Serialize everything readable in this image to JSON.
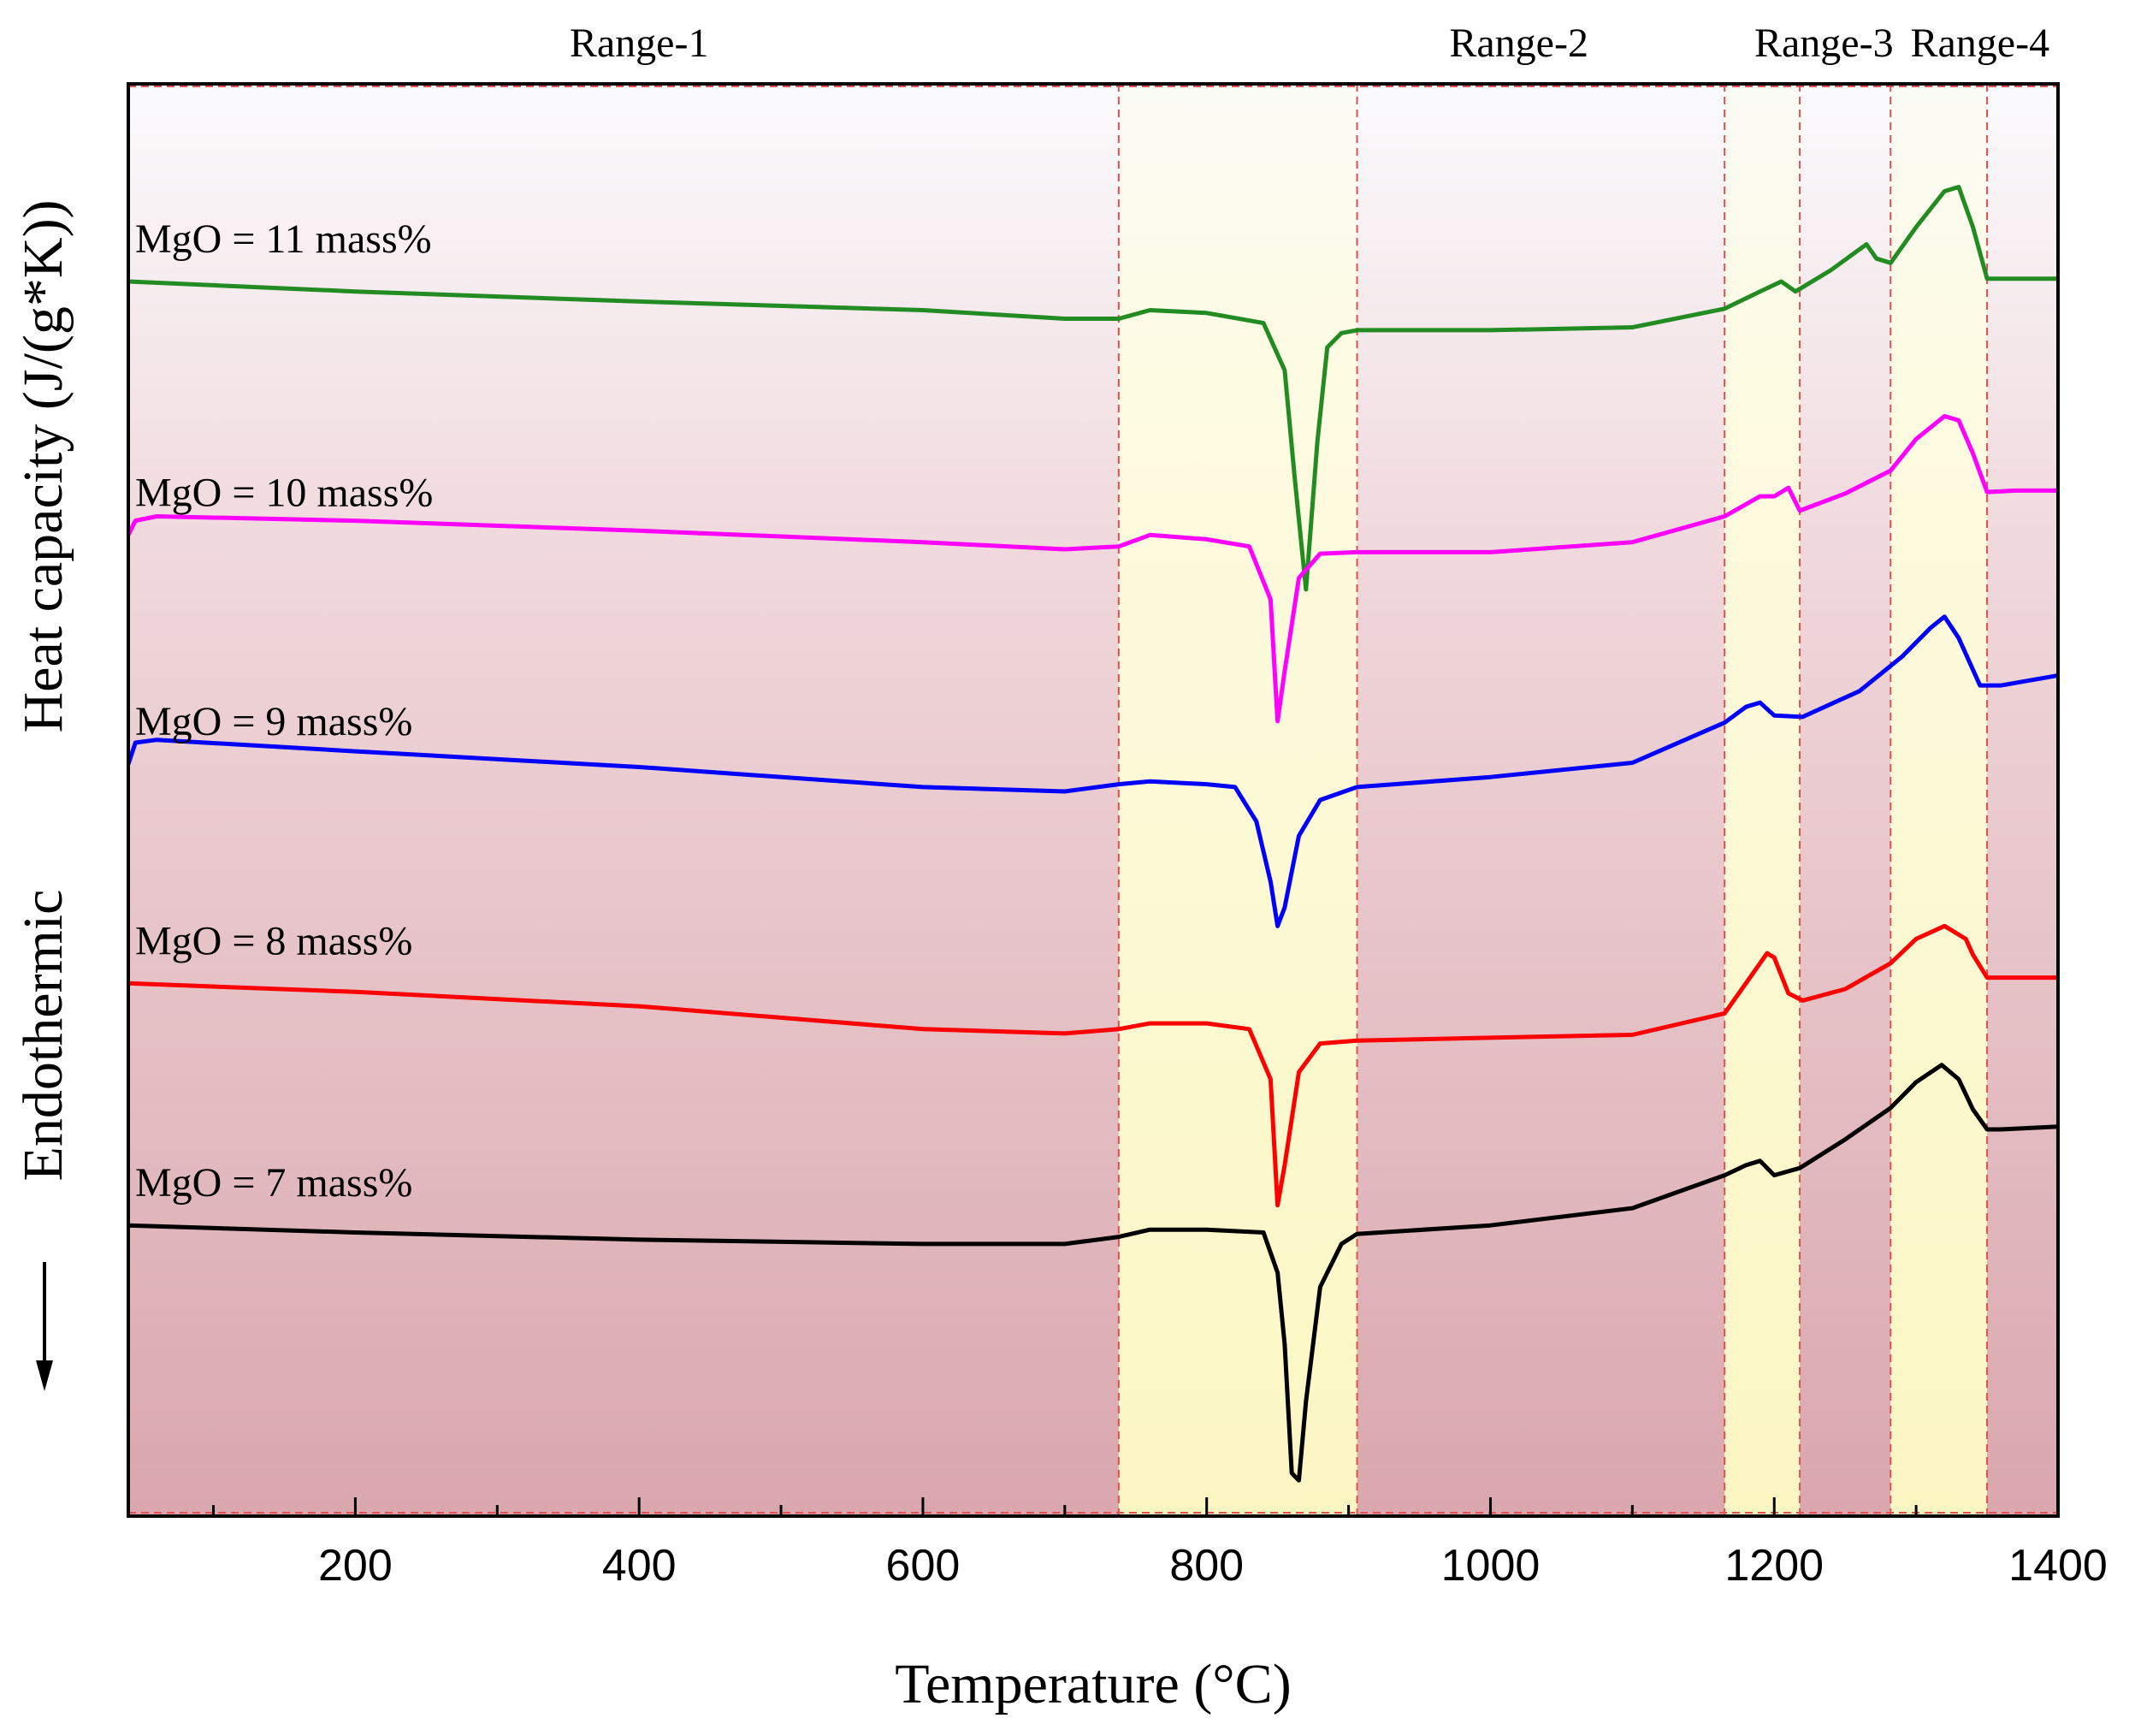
{
  "chart_data": {
    "type": "line",
    "xlabel": "Temperature",
    "xlabel_unit": "(°C)",
    "ylabel": "Heat capacity (J/(g*K))",
    "direction_label": "Endothermic",
    "xlim": [
      40,
      1400
    ],
    "ylim": [
      0,
      100
    ],
    "x_ticks": [
      200,
      400,
      600,
      800,
      1000,
      1200,
      1400
    ],
    "grid": false,
    "ranges": [
      {
        "label": "Range-1",
        "from": 40,
        "to": 738,
        "highlight": false
      },
      {
        "label": "Range-2",
        "from": 738,
        "to": 906,
        "highlight": true
      },
      {
        "label": "Range-2",
        "from": 906,
        "to": 1165,
        "highlight": false
      },
      {
        "label": "Range-3",
        "from": 1165,
        "to": 1218,
        "highlight": true
      },
      {
        "label": "Range-3",
        "from": 1218,
        "to": 1282,
        "highlight": false
      },
      {
        "label": "Range-4",
        "from": 1282,
        "to": 1350,
        "highlight": true
      },
      {
        "label": "Range-4",
        "from": 1350,
        "to": 1400,
        "highlight": false
      }
    ],
    "range_titles": [
      {
        "label": "Range-1",
        "at": 400
      },
      {
        "label": "Range-2",
        "at": 1020
      },
      {
        "label": "Range-3",
        "at": 1235
      },
      {
        "label": "Range-4",
        "at": 1345
      }
    ],
    "boundaries": [
      738,
      906,
      1165,
      1218,
      1282,
      1350
    ],
    "series": [
      {
        "name": "MgO = 11 mass%",
        "color": "#228b22",
        "x": [
          40,
          200,
          400,
          600,
          700,
          738,
          760,
          800,
          840,
          855,
          862,
          870,
          878,
          885,
          895,
          906,
          1000,
          1100,
          1165,
          1190,
          1205,
          1215,
          1240,
          1265,
          1272,
          1282,
          1300,
          1320,
          1330,
          1340,
          1350,
          1360,
          1380,
          1400
        ],
        "values": [
          86.2,
          85.5,
          84.8,
          84.2,
          83.6,
          83.6,
          84.2,
          84.0,
          83.3,
          80.0,
          72.5,
          64.7,
          75.0,
          81.6,
          82.6,
          82.8,
          82.8,
          83.0,
          84.3,
          85.5,
          86.2,
          85.5,
          87.0,
          88.8,
          87.8,
          87.5,
          90.0,
          92.5,
          92.8,
          90.0,
          86.4,
          86.4,
          86.4,
          86.4
        ]
      },
      {
        "name": "MgO = 10 mass%",
        "color": "#ff00ff",
        "x": [
          40,
          45,
          60,
          200,
          400,
          600,
          700,
          738,
          760,
          800,
          830,
          845,
          850,
          855,
          865,
          880,
          906,
          1000,
          1100,
          1165,
          1190,
          1200,
          1210,
          1218,
          1250,
          1282,
          1300,
          1320,
          1330,
          1340,
          1350,
          1370,
          1400
        ],
        "values": [
          68.5,
          69.5,
          69.8,
          69.5,
          68.8,
          68.0,
          67.5,
          67.7,
          68.5,
          68.2,
          67.7,
          64.0,
          55.5,
          59.0,
          65.5,
          67.2,
          67.3,
          67.3,
          68.0,
          69.8,
          71.2,
          71.2,
          71.8,
          70.2,
          71.4,
          73.0,
          75.2,
          76.8,
          76.5,
          74.2,
          71.5,
          71.6,
          71.6
        ]
      },
      {
        "name": "MgO = 9 mass%",
        "color": "#0000ff",
        "x": [
          40,
          45,
          60,
          200,
          400,
          600,
          700,
          738,
          760,
          800,
          820,
          835,
          845,
          850,
          855,
          865,
          880,
          906,
          1000,
          1100,
          1165,
          1180,
          1190,
          1200,
          1220,
          1260,
          1290,
          1310,
          1320,
          1330,
          1345,
          1360,
          1400
        ],
        "values": [
          52.5,
          54.0,
          54.2,
          53.4,
          52.3,
          50.9,
          50.6,
          51.1,
          51.3,
          51.1,
          50.9,
          48.5,
          44.3,
          41.2,
          42.5,
          47.5,
          50.0,
          50.9,
          51.6,
          52.6,
          55.4,
          56.5,
          56.8,
          55.9,
          55.8,
          57.6,
          60.0,
          62.0,
          62.8,
          61.3,
          58.0,
          58.0,
          58.7
        ]
      },
      {
        "name": "MgO = 8 mass%",
        "color": "#ff0000",
        "x": [
          40,
          200,
          400,
          600,
          700,
          738,
          760,
          800,
          830,
          845,
          850,
          855,
          865,
          880,
          906,
          1000,
          1100,
          1165,
          1180,
          1195,
          1200,
          1210,
          1220,
          1250,
          1282,
          1300,
          1320,
          1335,
          1340,
          1350,
          1360,
          1400
        ],
        "values": [
          37.2,
          36.6,
          35.6,
          34.0,
          33.7,
          34.0,
          34.4,
          34.4,
          34.0,
          30.5,
          21.7,
          24.5,
          31.0,
          33.0,
          33.2,
          33.4,
          33.6,
          35.1,
          37.2,
          39.3,
          39.0,
          36.5,
          36.0,
          36.8,
          38.6,
          40.3,
          41.2,
          40.3,
          39.2,
          37.6,
          37.6,
          37.6
        ]
      },
      {
        "name": "MgO = 7 mass%",
        "color": "#000000",
        "x": [
          40,
          200,
          400,
          600,
          700,
          738,
          760,
          800,
          840,
          850,
          855,
          860,
          865,
          870,
          880,
          895,
          906,
          1000,
          1100,
          1165,
          1180,
          1190,
          1200,
          1218,
          1250,
          1282,
          1300,
          1318,
          1330,
          1340,
          1350,
          1360,
          1400
        ],
        "values": [
          20.3,
          19.8,
          19.3,
          19.0,
          19.0,
          19.5,
          20.0,
          20.0,
          19.8,
          17.0,
          12.0,
          3.0,
          2.5,
          8.0,
          16.0,
          19.0,
          19.7,
          20.3,
          21.5,
          23.8,
          24.5,
          24.8,
          23.8,
          24.3,
          26.3,
          28.5,
          30.3,
          31.5,
          30.5,
          28.4,
          27.0,
          27.0,
          27.2
        ]
      }
    ]
  }
}
